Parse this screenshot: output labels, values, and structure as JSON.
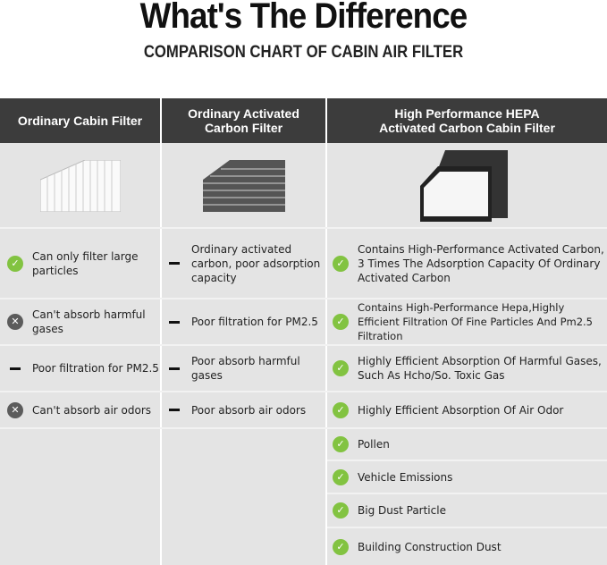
{
  "title": "What's The Difference",
  "subtitle": "COMPARISON CHART OF CABIN AIR FILTER",
  "columns": [
    {
      "header": "Ordinary Cabin Filter",
      "items": [
        {
          "icon": "check",
          "text": "Can only filter large particles"
        },
        {
          "icon": "cross",
          "text": "Can't absorb harmful gases"
        },
        {
          "icon": "dash",
          "text": "Poor filtration for PM2.5"
        },
        {
          "icon": "cross",
          "text": "Can't absorb air odors"
        }
      ]
    },
    {
      "header": "Ordinary Activated Carbon Filter",
      "items": [
        {
          "icon": "dash",
          "text": "Ordinary activated carbon, poor adsorption capacity"
        },
        {
          "icon": "dash",
          "text": "Poor filtration for PM2.5"
        },
        {
          "icon": "dash",
          "text": "Poor absorb harmful gases"
        },
        {
          "icon": "dash",
          "text": "Poor absorb air odors"
        }
      ]
    },
    {
      "header": "High Performance HEPA Activated Carbon Cabin Filter",
      "items": [
        {
          "icon": "check",
          "text": "Contains High-Performance Activated Carbon, 3 Times The Adsorption Capacity Of Ordinary Activated Carbon"
        },
        {
          "icon": "check",
          "text": "Contains High-Performance Hepa,Highly Efficient Filtration Of Fine Particles And Pm2.5 Filtration"
        },
        {
          "icon": "check",
          "text": "Highly Efficient Absorption Of Harmful Gases, Such As Hcho/So. Toxic Gas"
        },
        {
          "icon": "check",
          "text": "Highly Efficient Absorption Of Air Odor"
        },
        {
          "icon": "check",
          "text": "Pollen"
        },
        {
          "icon": "check",
          "text": "Vehicle Emissions"
        },
        {
          "icon": "check",
          "text": "Big Dust Particle"
        },
        {
          "icon": "check",
          "text": "Building Construction Dust"
        }
      ]
    }
  ],
  "colors": {
    "header_bg": "#3c3c3c",
    "cell_bg": "#e4e4e4",
    "check": "#82c341",
    "cross": "#5c5c5c"
  }
}
